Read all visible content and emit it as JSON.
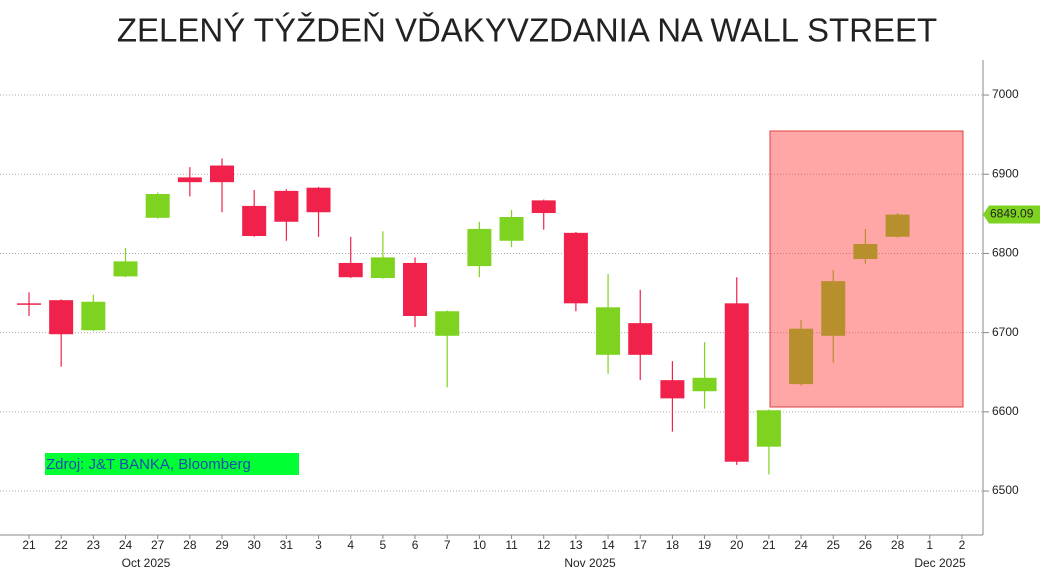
{
  "chart_data": {
    "type": "candlestick",
    "title": "ZELENÝ TÝŽDEŇ VĎAKYVZDANIA NA WALL STREET",
    "annotation": "Zdroj: J&T BANKA, Bloomberg",
    "categories": [
      "21",
      "22",
      "23",
      "24",
      "27",
      "28",
      "29",
      "30",
      "31",
      "3",
      "4",
      "5",
      "6",
      "7",
      "10",
      "11",
      "12",
      "13",
      "14",
      "17",
      "18",
      "19",
      "20",
      "21",
      "24",
      "25",
      "26",
      "28",
      "1",
      "2"
    ],
    "months": [
      "Oct 2025",
      "Nov 2025",
      "Dec 2025"
    ],
    "open": [
      6737,
      6741,
      6703,
      6771,
      6845,
      6896,
      6911,
      6860,
      6879,
      6883,
      6788,
      6769,
      6788,
      6696,
      6784,
      6816,
      6867,
      6826,
      6672,
      6712,
      6640,
      6626,
      6737,
      6556,
      6635,
      6696,
      6793,
      6821,
      null,
      null
    ],
    "high": [
      6751,
      6742,
      6748,
      6807,
      6877,
      6909,
      6920,
      6880,
      6881,
      6884,
      6821,
      6828,
      6795,
      6728,
      6840,
      6855,
      6868,
      6827,
      6774,
      6754,
      6664,
      6688,
      6770,
      6603,
      6716,
      6779,
      6831,
      6851,
      null,
      null
    ],
    "low": [
      6721,
      6657,
      6702,
      6770,
      6844,
      6872,
      6852,
      6821,
      6816,
      6821,
      6769,
      6768,
      6707,
      6631,
      6770,
      6808,
      6830,
      6727,
      6648,
      6640,
      6575,
      6604,
      6533,
      6521,
      6633,
      6662,
      6787,
      6820,
      null,
      null
    ],
    "close": [
      6736,
      6698,
      6739,
      6790,
      6875,
      6890,
      6890,
      6822,
      6840,
      6852,
      6770,
      6795,
      6721,
      6727,
      6831,
      6846,
      6851,
      6737,
      6732,
      6672,
      6617,
      6643,
      6537,
      6602,
      6705,
      6765,
      6812,
      6849.09,
      null,
      null
    ],
    "up_color": "#7ed321",
    "down_color": "#f0214b",
    "ylim": [
      6445,
      7045
    ],
    "yticks": [
      6500,
      6600,
      6700,
      6800,
      6900,
      7000
    ],
    "grid": true
  }
}
